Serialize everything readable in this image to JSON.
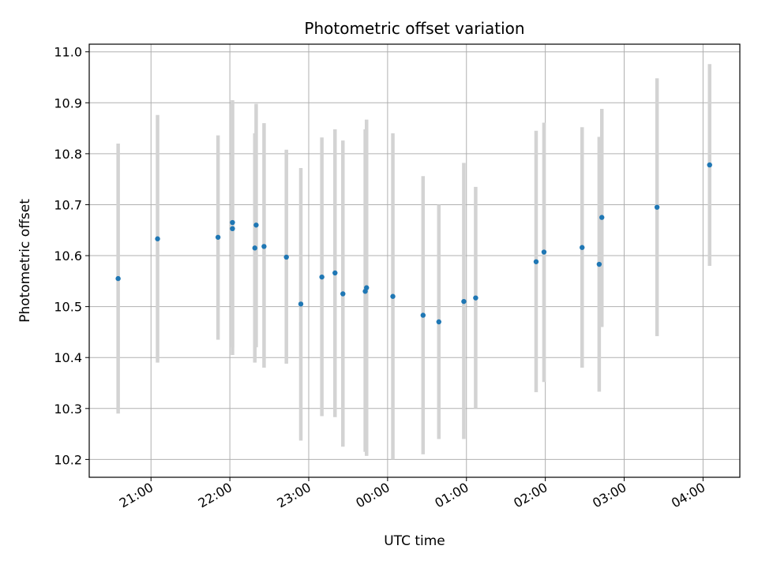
{
  "chart_data": {
    "type": "scatter",
    "title": "Photometric offset variation",
    "xlabel": "UTC time",
    "ylabel": "Photometric offset",
    "grid": true,
    "legend": "none",
    "x_unit": "UTC time (HH:MM)",
    "xlim": [
      "20:13",
      "24:00+04:28"
    ],
    "xlim_labels": [
      "20:13",
      "04:28"
    ],
    "ylim": [
      10.165,
      11.015
    ],
    "x_ticks": [
      "21:00",
      "22:00",
      "23:00",
      "00:00",
      "01:00",
      "02:00",
      "03:00",
      "04:00"
    ],
    "y_ticks": [
      "10.2",
      "10.3",
      "10.4",
      "10.5",
      "10.6",
      "10.7",
      "10.8",
      "10.9",
      "11.0"
    ],
    "colors": {
      "point": "#1f77b4",
      "errorbar": "#d3d3d3",
      "grid": "#b0b0b0"
    },
    "points": [
      {
        "t": "20:35",
        "y": 10.555,
        "lo": 10.29,
        "hi": 10.82
      },
      {
        "t": "21:05",
        "y": 10.633,
        "lo": 10.39,
        "hi": 10.876
      },
      {
        "t": "21:51",
        "y": 10.636,
        "lo": 10.435,
        "hi": 10.836
      },
      {
        "t": "22:02",
        "y": 10.665,
        "lo": 10.42,
        "hi": 10.905
      },
      {
        "t": "22:02",
        "y": 10.653,
        "lo": 10.405,
        "hi": 10.9
      },
      {
        "t": "22:19",
        "y": 10.615,
        "lo": 10.39,
        "hi": 10.84
      },
      {
        "t": "22:20",
        "y": 10.66,
        "lo": 10.42,
        "hi": 10.898
      },
      {
        "t": "22:26",
        "y": 10.618,
        "lo": 10.38,
        "hi": 10.86
      },
      {
        "t": "22:43",
        "y": 10.597,
        "lo": 10.388,
        "hi": 10.808
      },
      {
        "t": "22:54",
        "y": 10.505,
        "lo": 10.237,
        "hi": 10.772
      },
      {
        "t": "23:10",
        "y": 10.558,
        "lo": 10.285,
        "hi": 10.832
      },
      {
        "t": "23:20",
        "y": 10.566,
        "lo": 10.283,
        "hi": 10.848
      },
      {
        "t": "23:26",
        "y": 10.525,
        "lo": 10.225,
        "hi": 10.826
      },
      {
        "t": "23:43",
        "y": 10.53,
        "lo": 10.215,
        "hi": 10.848
      },
      {
        "t": "23:44",
        "y": 10.537,
        "lo": 10.207,
        "hi": 10.867
      },
      {
        "t": "00:04",
        "y": 10.52,
        "lo": 10.2,
        "hi": 10.84
      },
      {
        "t": "00:27",
        "y": 10.483,
        "lo": 10.21,
        "hi": 10.756
      },
      {
        "t": "00:39",
        "y": 10.47,
        "lo": 10.24,
        "hi": 10.7
      },
      {
        "t": "00:58",
        "y": 10.51,
        "lo": 10.24,
        "hi": 10.782
      },
      {
        "t": "01:07",
        "y": 10.517,
        "lo": 10.3,
        "hi": 10.735
      },
      {
        "t": "01:53",
        "y": 10.588,
        "lo": 10.332,
        "hi": 10.845
      },
      {
        "t": "01:59",
        "y": 10.607,
        "lo": 10.352,
        "hi": 10.861
      },
      {
        "t": "02:28",
        "y": 10.616,
        "lo": 10.38,
        "hi": 10.852
      },
      {
        "t": "02:41",
        "y": 10.583,
        "lo": 10.333,
        "hi": 10.833
      },
      {
        "t": "02:43",
        "y": 10.675,
        "lo": 10.46,
        "hi": 10.888
      },
      {
        "t": "03:25",
        "y": 10.695,
        "lo": 10.442,
        "hi": 10.948
      },
      {
        "t": "04:05",
        "y": 10.778,
        "lo": 10.58,
        "hi": 10.976
      }
    ]
  }
}
